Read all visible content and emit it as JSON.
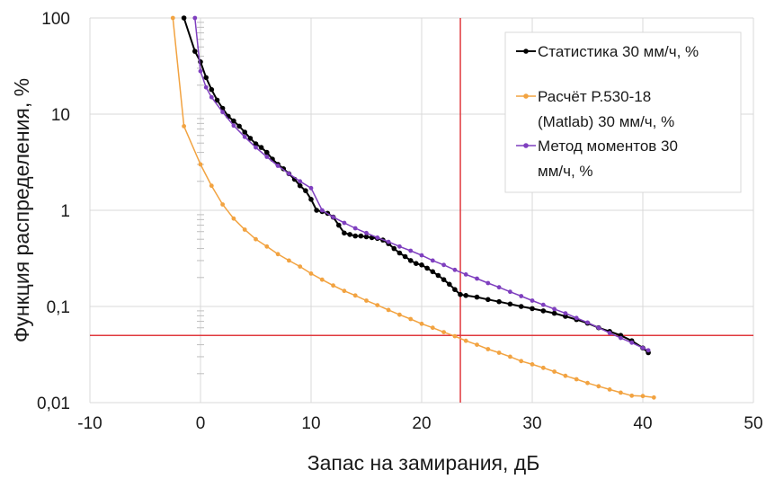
{
  "chart_data": {
    "type": "line",
    "xlabel": "Запас на замирания, дБ",
    "ylabel": "Функция распределения, %",
    "xlim": [
      -10,
      50
    ],
    "ylim": [
      0.01,
      100
    ],
    "yscale": "log",
    "grid": true,
    "legend_position": "top-right",
    "x_ticks": [
      "-10",
      "0",
      "10",
      "20",
      "30",
      "40",
      "50"
    ],
    "y_ticks": [
      "0,01",
      "0,1",
      "1",
      "10",
      "100"
    ],
    "x_tick_values": [
      -10,
      0,
      10,
      20,
      30,
      40,
      50
    ],
    "y_tick_values": [
      0.01,
      0.1,
      1,
      10,
      100
    ],
    "reference_lines": {
      "vertical_x": 23.5,
      "horizontal_y": 0.05,
      "color": "#e0393e"
    },
    "series": [
      {
        "name": "Статистика 30 мм/ч, %",
        "color": "#000000",
        "points": [
          [
            -1.5,
            100
          ],
          [
            -0.5,
            45
          ],
          [
            0,
            35
          ],
          [
            0.5,
            24
          ],
          [
            1,
            18
          ],
          [
            1.5,
            14
          ],
          [
            2,
            11.5
          ],
          [
            2.5,
            9.5
          ],
          [
            3,
            8.5
          ],
          [
            3.5,
            7.5
          ],
          [
            4,
            6.5
          ],
          [
            4.5,
            5.6
          ],
          [
            5,
            4.9
          ],
          [
            5.5,
            4.5
          ],
          [
            6,
            4.0
          ],
          [
            6.5,
            3.4
          ],
          [
            7,
            3.0
          ],
          [
            7.5,
            2.7
          ],
          [
            8,
            2.4
          ],
          [
            8.5,
            2.1
          ],
          [
            9,
            1.8
          ],
          [
            9.5,
            1.6
          ],
          [
            10,
            1.3
          ],
          [
            10.5,
            1.0
          ],
          [
            11,
            0.97
          ],
          [
            11.5,
            0.93
          ],
          [
            12,
            0.85
          ],
          [
            12.5,
            0.7
          ],
          [
            13,
            0.58
          ],
          [
            13.5,
            0.56
          ],
          [
            14,
            0.54
          ],
          [
            14.5,
            0.54
          ],
          [
            15,
            0.53
          ],
          [
            15.5,
            0.52
          ],
          [
            16,
            0.51
          ],
          [
            16.5,
            0.49
          ],
          [
            17,
            0.45
          ],
          [
            17.5,
            0.4
          ],
          [
            18,
            0.36
          ],
          [
            18.5,
            0.33
          ],
          [
            19,
            0.3
          ],
          [
            19.5,
            0.28
          ],
          [
            20,
            0.27
          ],
          [
            20.5,
            0.25
          ],
          [
            21,
            0.23
          ],
          [
            21.5,
            0.21
          ],
          [
            22,
            0.19
          ],
          [
            22.5,
            0.17
          ],
          [
            23,
            0.15
          ],
          [
            23.5,
            0.133
          ],
          [
            24,
            0.13
          ],
          [
            25,
            0.125
          ],
          [
            26,
            0.118
          ],
          [
            27,
            0.112
          ],
          [
            28,
            0.106
          ],
          [
            29,
            0.1
          ],
          [
            30,
            0.095
          ],
          [
            31,
            0.09
          ],
          [
            32,
            0.085
          ],
          [
            33,
            0.079
          ],
          [
            34,
            0.073
          ],
          [
            35,
            0.067
          ],
          [
            36,
            0.06
          ],
          [
            37,
            0.055
          ],
          [
            38,
            0.05
          ],
          [
            39,
            0.044
          ],
          [
            40,
            0.037
          ],
          [
            40.5,
            0.033
          ]
        ]
      },
      {
        "name": "Расчёт P.530-18 (Matlab) 30 мм/ч, %",
        "color": "#f2a341",
        "points": [
          [
            -2.5,
            100
          ],
          [
            -1.5,
            7.5
          ],
          [
            0,
            3
          ],
          [
            1,
            1.8
          ],
          [
            2,
            1.15
          ],
          [
            3,
            0.82
          ],
          [
            4,
            0.63
          ],
          [
            5,
            0.5
          ],
          [
            6,
            0.42
          ],
          [
            7,
            0.35
          ],
          [
            8,
            0.3
          ],
          [
            9,
            0.26
          ],
          [
            10,
            0.22
          ],
          [
            11,
            0.19
          ],
          [
            12,
            0.165
          ],
          [
            13,
            0.145
          ],
          [
            14,
            0.13
          ],
          [
            15,
            0.115
          ],
          [
            16,
            0.103
          ],
          [
            17,
            0.092
          ],
          [
            18,
            0.082
          ],
          [
            19,
            0.074
          ],
          [
            20,
            0.066
          ],
          [
            21,
            0.06
          ],
          [
            22,
            0.054
          ],
          [
            23,
            0.049
          ],
          [
            24,
            0.044
          ],
          [
            25,
            0.04
          ],
          [
            26,
            0.036
          ],
          [
            27,
            0.033
          ],
          [
            28,
            0.03
          ],
          [
            29,
            0.027
          ],
          [
            30,
            0.025
          ],
          [
            31,
            0.023
          ],
          [
            32,
            0.021
          ],
          [
            33,
            0.019
          ],
          [
            34,
            0.0175
          ],
          [
            35,
            0.016
          ],
          [
            36,
            0.0148
          ],
          [
            37,
            0.0137
          ],
          [
            38,
            0.0127
          ],
          [
            39,
            0.0118
          ],
          [
            40,
            0.0117
          ],
          [
            41,
            0.0113
          ]
        ]
      },
      {
        "name": "Метод моментов 30 мм/ч, %",
        "color": "#7f3fbf",
        "points": [
          [
            -0.5,
            100
          ],
          [
            0,
            28
          ],
          [
            0.5,
            19
          ],
          [
            1,
            15
          ],
          [
            2,
            10.5
          ],
          [
            3,
            7.6
          ],
          [
            4,
            5.8
          ],
          [
            5,
            4.5
          ],
          [
            6,
            3.6
          ],
          [
            7,
            2.9
          ],
          [
            8,
            2.4
          ],
          [
            9,
            2.0
          ],
          [
            10,
            1.7
          ],
          [
            11,
            1.0
          ],
          [
            12,
            0.85
          ],
          [
            13,
            0.74
          ],
          [
            14,
            0.65
          ],
          [
            15,
            0.58
          ],
          [
            16,
            0.52
          ],
          [
            17,
            0.47
          ],
          [
            18,
            0.42
          ],
          [
            19,
            0.38
          ],
          [
            20,
            0.34
          ],
          [
            21,
            0.3
          ],
          [
            22,
            0.27
          ],
          [
            23,
            0.24
          ],
          [
            24,
            0.215
          ],
          [
            25,
            0.195
          ],
          [
            26,
            0.175
          ],
          [
            27,
            0.158
          ],
          [
            28,
            0.142
          ],
          [
            29,
            0.128
          ],
          [
            30,
            0.115
          ],
          [
            31,
            0.104
          ],
          [
            32,
            0.094
          ],
          [
            33,
            0.085
          ],
          [
            34,
            0.076
          ],
          [
            35,
            0.068
          ],
          [
            36,
            0.06
          ],
          [
            37,
            0.053
          ],
          [
            38,
            0.047
          ],
          [
            39,
            0.042
          ],
          [
            40,
            0.037
          ],
          [
            40.5,
            0.035
          ]
        ]
      }
    ]
  },
  "legend": {
    "entries": [
      {
        "lines": [
          "Статистика 30 мм/ч, %"
        ],
        "color": "#000000"
      },
      {
        "lines": [
          "Расчёт P.530-18",
          "(Matlab) 30 мм/ч, %"
        ],
        "color": "#f2a341"
      },
      {
        "lines": [
          "Метод моментов 30",
          "мм/ч, %"
        ],
        "color": "#7f3fbf"
      }
    ]
  }
}
